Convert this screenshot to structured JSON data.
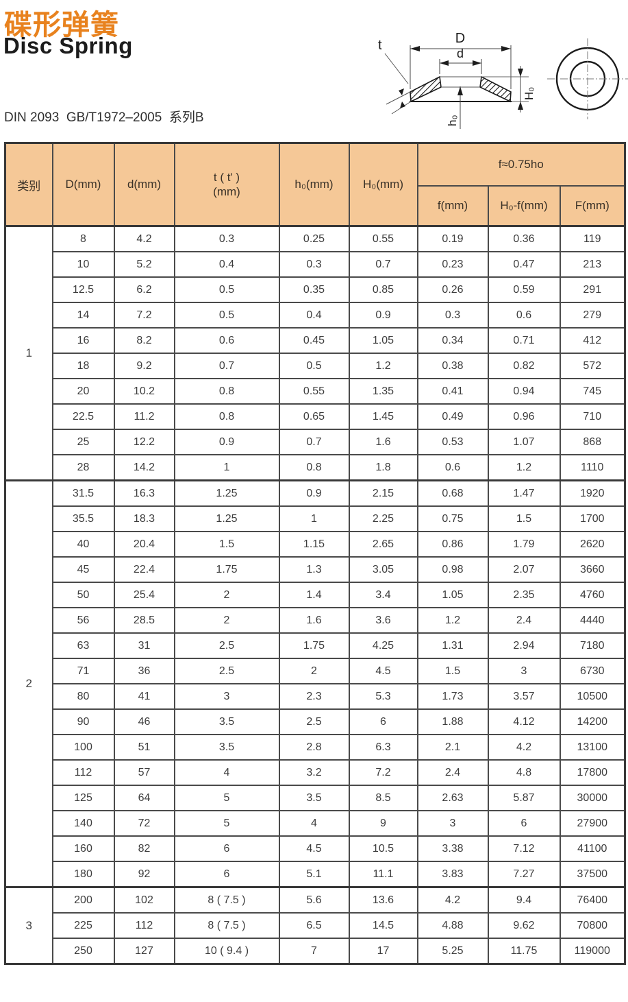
{
  "page": {
    "title_cn": "碟形弹簧",
    "title_en": "Disc Spring",
    "standard": "DIN 2093  GB/T1972–2005  系列B"
  },
  "diagram": {
    "labels": {
      "D": "D",
      "d": "d",
      "t": "t",
      "h0": "h₀",
      "H0": "H₀"
    }
  },
  "table": {
    "headers": {
      "category": "类别",
      "D": "D(mm)",
      "d": "d(mm)",
      "t": {
        "line1": "t ( t' )",
        "line2": "(mm)"
      },
      "h0": "h₀(mm)",
      "H0": "H₀(mm)",
      "f_group": "f≈0.75ho",
      "f": "f(mm)",
      "H0f": "H₀-f(mm)",
      "F": "F(mm)"
    },
    "groups": [
      {
        "category": "1",
        "rows": [
          [
            "8",
            "4.2",
            "0.3",
            "0.25",
            "0.55",
            "0.19",
            "0.36",
            "119"
          ],
          [
            "10",
            "5.2",
            "0.4",
            "0.3",
            "0.7",
            "0.23",
            "0.47",
            "213"
          ],
          [
            "12.5",
            "6.2",
            "0.5",
            "0.35",
            "0.85",
            "0.26",
            "0.59",
            "291"
          ],
          [
            "14",
            "7.2",
            "0.5",
            "0.4",
            "0.9",
            "0.3",
            "0.6",
            "279"
          ],
          [
            "16",
            "8.2",
            "0.6",
            "0.45",
            "1.05",
            "0.34",
            "0.71",
            "412"
          ],
          [
            "18",
            "9.2",
            "0.7",
            "0.5",
            "1.2",
            "0.38",
            "0.82",
            "572"
          ],
          [
            "20",
            "10.2",
            "0.8",
            "0.55",
            "1.35",
            "0.41",
            "0.94",
            "745"
          ],
          [
            "22.5",
            "11.2",
            "0.8",
            "0.65",
            "1.45",
            "0.49",
            "0.96",
            "710"
          ],
          [
            "25",
            "12.2",
            "0.9",
            "0.7",
            "1.6",
            "0.53",
            "1.07",
            "868"
          ],
          [
            "28",
            "14.2",
            "1",
            "0.8",
            "1.8",
            "0.6",
            "1.2",
            "1110"
          ]
        ]
      },
      {
        "category": "2",
        "rows": [
          [
            "31.5",
            "16.3",
            "1.25",
            "0.9",
            "2.15",
            "0.68",
            "1.47",
            "1920"
          ],
          [
            "35.5",
            "18.3",
            "1.25",
            "1",
            "2.25",
            "0.75",
            "1.5",
            "1700"
          ],
          [
            "40",
            "20.4",
            "1.5",
            "1.15",
            "2.65",
            "0.86",
            "1.79",
            "2620"
          ],
          [
            "45",
            "22.4",
            "1.75",
            "1.3",
            "3.05",
            "0.98",
            "2.07",
            "3660"
          ],
          [
            "50",
            "25.4",
            "2",
            "1.4",
            "3.4",
            "1.05",
            "2.35",
            "4760"
          ],
          [
            "56",
            "28.5",
            "2",
            "1.6",
            "3.6",
            "1.2",
            "2.4",
            "4440"
          ],
          [
            "63",
            "31",
            "2.5",
            "1.75",
            "4.25",
            "1.31",
            "2.94",
            "7180"
          ],
          [
            "71",
            "36",
            "2.5",
            "2",
            "4.5",
            "1.5",
            "3",
            "6730"
          ],
          [
            "80",
            "41",
            "3",
            "2.3",
            "5.3",
            "1.73",
            "3.57",
            "10500"
          ],
          [
            "90",
            "46",
            "3.5",
            "2.5",
            "6",
            "1.88",
            "4.12",
            "14200"
          ],
          [
            "100",
            "51",
            "3.5",
            "2.8",
            "6.3",
            "2.1",
            "4.2",
            "13100"
          ],
          [
            "112",
            "57",
            "4",
            "3.2",
            "7.2",
            "2.4",
            "4.8",
            "17800"
          ],
          [
            "125",
            "64",
            "5",
            "3.5",
            "8.5",
            "2.63",
            "5.87",
            "30000"
          ],
          [
            "140",
            "72",
            "5",
            "4",
            "9",
            "3",
            "6",
            "27900"
          ],
          [
            "160",
            "82",
            "6",
            "4.5",
            "10.5",
            "3.38",
            "7.12",
            "41100"
          ],
          [
            "180",
            "92",
            "6",
            "5.1",
            "11.1",
            "3.83",
            "7.27",
            "37500"
          ]
        ]
      },
      {
        "category": "3",
        "rows": [
          [
            "200",
            "102",
            "8 ( 7.5 )",
            "5.6",
            "13.6",
            "4.2",
            "9.4",
            "76400"
          ],
          [
            "225",
            "112",
            "8 ( 7.5 )",
            "6.5",
            "14.5",
            "4.88",
            "9.62",
            "70800"
          ],
          [
            "250",
            "127",
            "10 ( 9.4 )",
            "7",
            "17",
            "5.25",
            "11.75",
            "119000"
          ]
        ]
      }
    ]
  },
  "colors": {
    "header_bg": "#f5c897",
    "title_orange": "#e8821e",
    "grid_line": "#4a4a4a"
  }
}
